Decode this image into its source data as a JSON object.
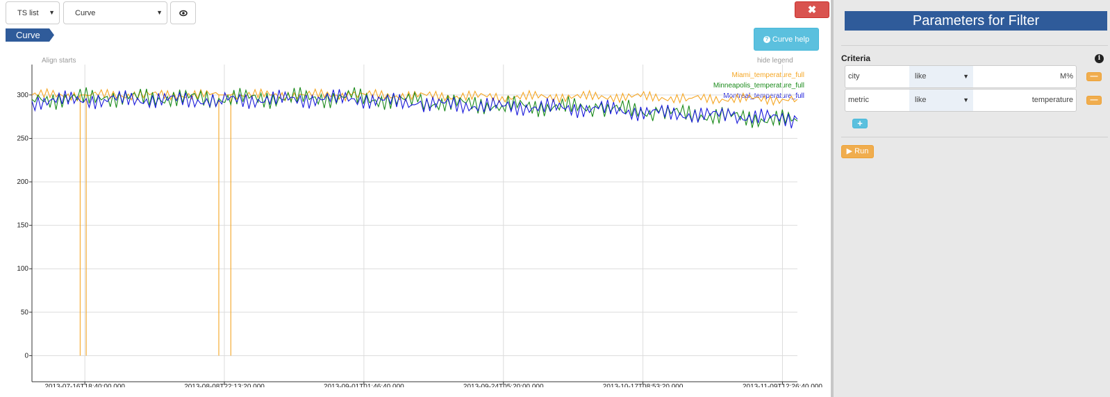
{
  "toolbar": {
    "ts_list_select": "TS list",
    "view_select": "Curve",
    "curve_tag": "Curve",
    "curve_help_label": "Curve help",
    "align_starts": "Align starts",
    "hide_legend": "hide legend"
  },
  "legend": [
    {
      "name": "Miami_temperature_full",
      "color": "#f5a623"
    },
    {
      "name": "Minneapolis_temperature_full",
      "color": "#1a8a1a"
    },
    {
      "name": "Montreal_temperature_full",
      "color": "#1a1adb"
    }
  ],
  "chart_data": {
    "type": "line",
    "y_ticks": [
      "300",
      "250",
      "200",
      "150",
      "100",
      "50",
      "0"
    ],
    "x_ticks": [
      "2013-07-16T18:40:00.000",
      "2013-08-08T22:13:20.000",
      "2013-09-01T01:46:40.000",
      "2013-09-24T05:20:00.000",
      "2013-10-17T08:53:20.000",
      "2013-11-09T12:26:40.000"
    ],
    "ylim": [
      -30,
      335
    ],
    "grid": true,
    "legend_position": "top-right",
    "series": [
      {
        "name": "Miami_temperature_full",
        "color": "#f5a623",
        "x": [
          "2013-07-08",
          "2013-07-16",
          "2013-07-16",
          "2013-07-16",
          "2013-07-17",
          "2013-07-17",
          "2013-07-17",
          "2013-08-08",
          "2013-08-08",
          "2013-08-08",
          "2013-08-10",
          "2013-08-10",
          "2013-08-10",
          "2013-08-30",
          "2013-09-24",
          "2013-10-17",
          "2013-10-25",
          "2013-11-12"
        ],
        "values": [
          300,
          300,
          0,
          300,
          300,
          0,
          300,
          300,
          0,
          300,
          300,
          0,
          300,
          300,
          298,
          298,
          296,
          295
        ]
      },
      {
        "name": "Minneapolis_temperature_full",
        "color": "#1a8a1a",
        "x": [
          "2013-07-08",
          "2013-07-20",
          "2013-08-08",
          "2013-08-30",
          "2013-09-10",
          "2013-09-24",
          "2013-10-10",
          "2013-10-20",
          "2013-11-01",
          "2013-11-12"
        ],
        "values": [
          295,
          297,
          296,
          297,
          292,
          288,
          285,
          280,
          275,
          270
        ]
      },
      {
        "name": "Montreal_temperature_full",
        "color": "#1a1adb",
        "x": [
          "2013-07-08",
          "2013-07-20",
          "2013-08-08",
          "2013-08-30",
          "2013-09-10",
          "2013-09-24",
          "2013-10-10",
          "2013-10-20",
          "2013-11-01",
          "2013-11-12"
        ],
        "values": [
          293,
          295,
          294,
          296,
          290,
          287,
          284,
          279,
          276,
          272
        ]
      }
    ]
  },
  "panel": {
    "title": "Parameters for Filter",
    "criteria_label": "Criteria",
    "rows": [
      {
        "field": "city",
        "op": "like",
        "value": "M%"
      },
      {
        "field": "metric",
        "op": "like",
        "value": "temperature"
      }
    ],
    "run_label": "Run"
  }
}
